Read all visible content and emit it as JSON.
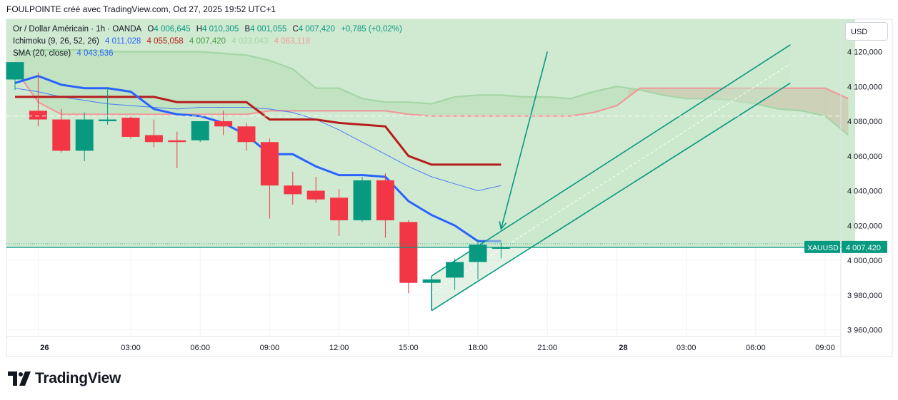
{
  "header": {
    "title": "FOULPOINTE créé avec TradingView.com, Oct 27, 2025 19:52 UTC+1"
  },
  "legend": {
    "symbol": "Or / Dollar Américain · 1h · OANDA",
    "o_label": "O",
    "o_value": "4 006,645",
    "h_label": "H",
    "h_value": "4 010,305",
    "b_label": "B",
    "b_value": "4 001,055",
    "c_label": "C",
    "c_value": "4 007,420",
    "change": "+0,785 (+0,02%)",
    "ichimoku_label": "Ichimoku (9, 26, 52, 26)",
    "ichimoku_values": [
      "4 011,028",
      "4 055,058",
      "4 007,420",
      "4 033,043",
      "4 063,118"
    ],
    "sma_label": "SMA (20, close)",
    "sma_value": "4 043,536"
  },
  "currency_button": "USD",
  "price_tag": {
    "symbol": "XAUUSD",
    "price": "4 007,420"
  },
  "colors": {
    "up": "#089981",
    "down": "#f23645",
    "tenkan": "#2962ff",
    "kijun": "#b71c1c",
    "sma": "#2962ff",
    "span_a": "#a5d6a7",
    "span_b": "#ef9a9a",
    "cloud": "#c8e6c9",
    "channel": "#089981"
  },
  "brand": "TradingView",
  "chart_data": {
    "type": "candlestick",
    "ylim": [
      3950000,
      4130000
    ],
    "y_ticks": [
      {
        "value": 4120000,
        "label": "4 120,000"
      },
      {
        "value": 4100000,
        "label": "4 100,000"
      },
      {
        "value": 4080000,
        "label": "4 080,000"
      },
      {
        "value": 4060000,
        "label": "4 060,000"
      },
      {
        "value": 4040000,
        "label": "4 040,000"
      },
      {
        "value": 4020000,
        "label": "4 020,000"
      },
      {
        "value": 4000000,
        "label": "4 000,000"
      },
      {
        "value": 3980000,
        "label": "3 980,000"
      },
      {
        "value": 3960000,
        "label": "3 960,000"
      }
    ],
    "x_ticks": [
      {
        "t": 1,
        "label": "26",
        "bold": true
      },
      {
        "t": 5,
        "label": "03:00"
      },
      {
        "t": 8,
        "label": "06:00"
      },
      {
        "t": 11,
        "label": "09:00"
      },
      {
        "t": 14,
        "label": "12:00"
      },
      {
        "t": 17,
        "label": "15:00"
      },
      {
        "t": 20,
        "label": "18:00"
      },
      {
        "t": 23,
        "label": "21:00"
      },
      {
        "t": 26,
        "label": "28",
        "bold": true
      },
      {
        "t": 29,
        "label": "03:00"
      },
      {
        "t": 32,
        "label": "06:00"
      },
      {
        "t": 35,
        "label": "09:00"
      }
    ],
    "candles": [
      {
        "t": 0,
        "o": 4104000,
        "h": 4114000,
        "l": 4098000,
        "c": 4114000
      },
      {
        "t": 1,
        "o": 4086000,
        "h": 4108000,
        "l": 4077000,
        "c": 4081000
      },
      {
        "t": 2,
        "o": 4081000,
        "h": 4087000,
        "l": 4062000,
        "c": 4063000
      },
      {
        "t": 3,
        "o": 4063000,
        "h": 4085000,
        "l": 4057000,
        "c": 4081000
      },
      {
        "t": 4,
        "o": 4080000,
        "h": 4099000,
        "l": 4078000,
        "c": 4081000
      },
      {
        "t": 5,
        "o": 4082000,
        "h": 4083000,
        "l": 4070000,
        "c": 4071000
      },
      {
        "t": 6,
        "o": 4072000,
        "h": 4081000,
        "l": 4065000,
        "c": 4068000
      },
      {
        "t": 7,
        "o": 4069000,
        "h": 4074000,
        "l": 4053000,
        "c": 4068000
      },
      {
        "t": 8,
        "o": 4069000,
        "h": 4080000,
        "l": 4068000,
        "c": 4080000
      },
      {
        "t": 9,
        "o": 4080000,
        "h": 4086000,
        "l": 4072000,
        "c": 4077000
      },
      {
        "t": 10,
        "o": 4077000,
        "h": 4079000,
        "l": 4063000,
        "c": 4068000
      },
      {
        "t": 11,
        "o": 4068000,
        "h": 4070000,
        "l": 4024000,
        "c": 4043000
      },
      {
        "t": 12,
        "o": 4043000,
        "h": 4051000,
        "l": 4032000,
        "c": 4038000
      },
      {
        "t": 13,
        "o": 4040000,
        "h": 4048000,
        "l": 4033000,
        "c": 4035000
      },
      {
        "t": 14,
        "o": 4036000,
        "h": 4041000,
        "l": 4014000,
        "c": 4023000
      },
      {
        "t": 15,
        "o": 4023000,
        "h": 4048000,
        "l": 4022000,
        "c": 4046000
      },
      {
        "t": 16,
        "o": 4046000,
        "h": 4050000,
        "l": 4013000,
        "c": 4023000
      },
      {
        "t": 17,
        "o": 4022000,
        "h": 4023000,
        "l": 3981000,
        "c": 3987000
      },
      {
        "t": 18,
        "o": 3987000,
        "h": 3990000,
        "l": 3985000,
        "c": 3989000
      },
      {
        "t": 19,
        "o": 3990000,
        "h": 4001000,
        "l": 3983000,
        "c": 3999000
      },
      {
        "t": 20,
        "o": 3999000,
        "h": 4012000,
        "l": 3989000,
        "c": 4009000
      },
      {
        "t": 21,
        "o": 4006645,
        "h": 4010305,
        "l": 4001055,
        "c": 4007420
      }
    ],
    "tenkan": [
      [
        0,
        4102000
      ],
      [
        1,
        4106000
      ],
      [
        2,
        4101000
      ],
      [
        3,
        4099000
      ],
      [
        4,
        4099000
      ],
      [
        5,
        4097000
      ],
      [
        6,
        4087000
      ],
      [
        7,
        4084000
      ],
      [
        8,
        4083000
      ],
      [
        9,
        4079000
      ],
      [
        10,
        4072000
      ],
      [
        11,
        4061000
      ],
      [
        12,
        4061000
      ],
      [
        13,
        4054000
      ],
      [
        14,
        4049000
      ],
      [
        15,
        4049000
      ],
      [
        16,
        4048000
      ],
      [
        17,
        4034000
      ],
      [
        18,
        4026000
      ],
      [
        19,
        4020000
      ],
      [
        20,
        4011000
      ],
      [
        21,
        4011000
      ]
    ],
    "kijun": [
      [
        0,
        4094000
      ],
      [
        2,
        4094000
      ],
      [
        3,
        4094000
      ],
      [
        6,
        4094000
      ],
      [
        7,
        4091000
      ],
      [
        10,
        4091000
      ],
      [
        11,
        4081000
      ],
      [
        13,
        4081000
      ],
      [
        14,
        4079000
      ],
      [
        16,
        4077000
      ],
      [
        17,
        4060000
      ],
      [
        18,
        4055000
      ],
      [
        21,
        4055000
      ]
    ],
    "sma": [
      [
        0,
        4099000
      ],
      [
        1,
        4097000
      ],
      [
        2,
        4094000
      ],
      [
        3,
        4092000
      ],
      [
        4,
        4090000
      ],
      [
        5,
        4089000
      ],
      [
        6,
        4088000
      ],
      [
        7,
        4087000
      ],
      [
        8,
        4088000
      ],
      [
        9,
        4088000
      ],
      [
        10,
        4088000
      ],
      [
        11,
        4087000
      ],
      [
        12,
        4085000
      ],
      [
        13,
        4081000
      ],
      [
        14,
        4075000
      ],
      [
        15,
        4068000
      ],
      [
        16,
        4061000
      ],
      [
        17,
        4054000
      ],
      [
        18,
        4048000
      ],
      [
        19,
        4044000
      ],
      [
        20,
        4040000
      ],
      [
        21,
        4043000
      ]
    ],
    "span_a": [
      [
        0,
        4119000
      ],
      [
        1,
        4121000
      ],
      [
        2,
        4121000
      ],
      [
        3,
        4121000
      ],
      [
        4,
        4120000
      ],
      [
        5,
        4120000
      ],
      [
        6,
        4120000
      ],
      [
        7,
        4120000
      ],
      [
        8,
        4120000
      ],
      [
        9,
        4119000
      ],
      [
        10,
        4118000
      ],
      [
        11,
        4115000
      ],
      [
        12,
        4110000
      ],
      [
        13,
        4099000
      ],
      [
        14,
        4099000
      ],
      [
        15,
        4093000
      ],
      [
        16,
        4091000
      ],
      [
        17,
        4091000
      ],
      [
        18,
        4090000
      ],
      [
        19,
        4094000
      ],
      [
        20,
        4095000
      ],
      [
        21,
        4095000
      ],
      [
        22,
        4094000
      ],
      [
        23,
        4094000
      ],
      [
        24,
        4093000
      ],
      [
        25,
        4097000
      ],
      [
        26,
        4100000
      ],
      [
        27,
        4098000
      ],
      [
        28,
        4095000
      ],
      [
        29,
        4093000
      ],
      [
        30,
        4093000
      ],
      [
        31,
        4092000
      ],
      [
        32,
        4090000
      ],
      [
        33,
        4087000
      ],
      [
        34,
        4086000
      ],
      [
        35,
        4083000
      ],
      [
        36,
        4072000
      ]
    ],
    "span_b": [
      [
        0,
        4110000
      ],
      [
        1,
        4091000
      ],
      [
        2,
        4084000
      ],
      [
        3,
        4084000
      ],
      [
        6,
        4084000
      ],
      [
        7,
        4084000
      ],
      [
        8,
        4084000
      ],
      [
        9,
        4084000
      ],
      [
        10,
        4084000
      ],
      [
        11,
        4086000
      ],
      [
        12,
        4086000
      ],
      [
        15,
        4086000
      ],
      [
        16,
        4086000
      ],
      [
        17,
        4084000
      ],
      [
        18,
        4083000
      ],
      [
        24,
        4083000
      ],
      [
        25,
        4085000
      ],
      [
        26,
        4089000
      ],
      [
        27,
        4099000
      ],
      [
        29,
        4099000
      ],
      [
        30,
        4099000
      ],
      [
        33,
        4099000
      ],
      [
        35,
        4099000
      ],
      [
        36,
        4093000
      ]
    ],
    "channel": {
      "upper": [
        [
          18.0,
          3991000
        ],
        [
          33.5,
          4124000
        ]
      ],
      "lower": [
        [
          18.0,
          3971000
        ],
        [
          33.5,
          4102000
        ]
      ],
      "mid": [
        [
          18.0,
          3981000
        ],
        [
          33.5,
          4113000
        ]
      ]
    },
    "arrow": {
      "from": [
        23.0,
        4120000
      ],
      "to": [
        21.0,
        4018000
      ]
    },
    "current_price": 4007420
  }
}
